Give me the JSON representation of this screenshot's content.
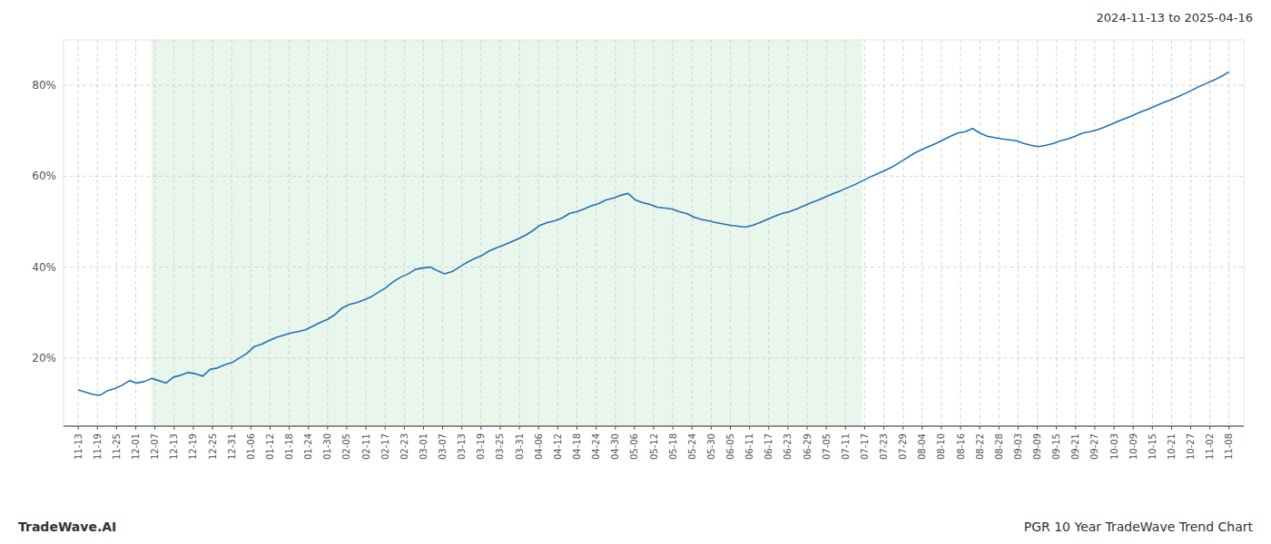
{
  "chart_data": {
    "type": "line",
    "title": "PGR 10 Year TradeWave Trend Chart",
    "subtitle": "2024-11-13 to 2025-04-16",
    "annotations": [
      "TradeWave.AI"
    ],
    "color": "#2271b3",
    "grid": true,
    "highlight": {
      "start": 10,
      "end": 107,
      "color": "#d4edda"
    },
    "xlim": [
      -2,
      159
    ],
    "xticks": [
      {
        "value": 0,
        "label": "11-13"
      },
      {
        "value": 2.6167,
        "label": "11-19"
      },
      {
        "value": 5.2333,
        "label": "11-25"
      },
      {
        "value": 7.85,
        "label": "12-01"
      },
      {
        "value": 10.4667,
        "label": "12-07"
      },
      {
        "value": 13.0833,
        "label": "12-13"
      },
      {
        "value": 15.7,
        "label": "12-19"
      },
      {
        "value": 18.3167,
        "label": "12-25"
      },
      {
        "value": 20.9333,
        "label": "12-31"
      },
      {
        "value": 23.55,
        "label": "01-06"
      },
      {
        "value": 26.1667,
        "label": "01-12"
      },
      {
        "value": 28.7833,
        "label": "01-18"
      },
      {
        "value": 31.4,
        "label": "01-24"
      },
      {
        "value": 34.0167,
        "label": "01-30"
      },
      {
        "value": 36.6333,
        "label": "02-05"
      },
      {
        "value": 39.25,
        "label": "02-11"
      },
      {
        "value": 41.8667,
        "label": "02-17"
      },
      {
        "value": 44.4833,
        "label": "02-23"
      },
      {
        "value": 47.1,
        "label": "03-01"
      },
      {
        "value": 49.7167,
        "label": "03-07"
      },
      {
        "value": 52.3333,
        "label": "03-13"
      },
      {
        "value": 54.95,
        "label": "03-19"
      },
      {
        "value": 57.5667,
        "label": "03-25"
      },
      {
        "value": 60.1833,
        "label": "03-31"
      },
      {
        "value": 62.8,
        "label": "04-06"
      },
      {
        "value": 65.4167,
        "label": "04-12"
      },
      {
        "value": 68.0333,
        "label": "04-18"
      },
      {
        "value": 70.65,
        "label": "04-24"
      },
      {
        "value": 73.2667,
        "label": "04-30"
      },
      {
        "value": 75.8833,
        "label": "05-06"
      },
      {
        "value": 78.5,
        "label": "05-12"
      },
      {
        "value": 81.1167,
        "label": "05-18"
      },
      {
        "value": 83.7333,
        "label": "05-24"
      },
      {
        "value": 86.35,
        "label": "05-30"
      },
      {
        "value": 88.9667,
        "label": "06-05"
      },
      {
        "value": 91.5833,
        "label": "06-11"
      },
      {
        "value": 94.2,
        "label": "06-17"
      },
      {
        "value": 96.8167,
        "label": "06-23"
      },
      {
        "value": 99.4333,
        "label": "06-29"
      },
      {
        "value": 102.05,
        "label": "07-05"
      },
      {
        "value": 104.6667,
        "label": "07-11"
      },
      {
        "value": 107.2833,
        "label": "07-17"
      },
      {
        "value": 109.9,
        "label": "07-23"
      },
      {
        "value": 112.5167,
        "label": "07-29"
      },
      {
        "value": 115.1333,
        "label": "08-04"
      },
      {
        "value": 117.75,
        "label": "08-10"
      },
      {
        "value": 120.3667,
        "label": "08-16"
      },
      {
        "value": 122.9833,
        "label": "08-22"
      },
      {
        "value": 125.6,
        "label": "08-28"
      },
      {
        "value": 128.2167,
        "label": "09-03"
      },
      {
        "value": 130.8333,
        "label": "09-09"
      },
      {
        "value": 133.45,
        "label": "09-15"
      },
      {
        "value": 136.0667,
        "label": "09-21"
      },
      {
        "value": 138.6833,
        "label": "09-27"
      },
      {
        "value": 141.3,
        "label": "10-03"
      },
      {
        "value": 143.9167,
        "label": "10-09"
      },
      {
        "value": 146.5333,
        "label": "10-15"
      },
      {
        "value": 149.15,
        "label": "10-21"
      },
      {
        "value": 151.7667,
        "label": "10-27"
      },
      {
        "value": 154.3833,
        "label": "11-02"
      },
      {
        "value": 157,
        "label": "11-08"
      }
    ],
    "ylim": [
      0.05,
      0.9
    ],
    "yticks": [
      {
        "value": 0.2,
        "label": "20%"
      },
      {
        "value": 0.4,
        "label": "40%"
      },
      {
        "value": 0.6,
        "label": "60%"
      },
      {
        "value": 0.8,
        "label": "80%"
      }
    ],
    "values": [
      0.13,
      0.125,
      0.12,
      0.118,
      0.128,
      0.133,
      0.14,
      0.15,
      0.145,
      0.148,
      0.155,
      0.15,
      0.145,
      0.158,
      0.162,
      0.168,
      0.165,
      0.16,
      0.175,
      0.178,
      0.185,
      0.19,
      0.2,
      0.21,
      0.225,
      0.23,
      0.238,
      0.245,
      0.25,
      0.255,
      0.258,
      0.262,
      0.27,
      0.278,
      0.285,
      0.295,
      0.31,
      0.318,
      0.322,
      0.328,
      0.335,
      0.345,
      0.355,
      0.368,
      0.378,
      0.385,
      0.395,
      0.398,
      0.4,
      0.392,
      0.385,
      0.39,
      0.4,
      0.41,
      0.418,
      0.425,
      0.435,
      0.442,
      0.448,
      0.455,
      0.462,
      0.47,
      0.48,
      0.492,
      0.498,
      0.502,
      0.508,
      0.518,
      0.522,
      0.528,
      0.535,
      0.54,
      0.548,
      0.552,
      0.558,
      0.562,
      0.548,
      0.542,
      0.538,
      0.532,
      0.53,
      0.528,
      0.522,
      0.518,
      0.51,
      0.505,
      0.502,
      0.498,
      0.495,
      0.492,
      0.49,
      0.488,
      0.492,
      0.498,
      0.505,
      0.512,
      0.518,
      0.522,
      0.528,
      0.535,
      0.542,
      0.548,
      0.555,
      0.562,
      0.568,
      0.575,
      0.582,
      0.59,
      0.598,
      0.605,
      0.612,
      0.62,
      0.63,
      0.64,
      0.65,
      0.658,
      0.665,
      0.672,
      0.68,
      0.688,
      0.695,
      0.698,
      0.705,
      0.695,
      0.688,
      0.685,
      0.682,
      0.68,
      0.678,
      0.672,
      0.668,
      0.665,
      0.668,
      0.672,
      0.678,
      0.682,
      0.688,
      0.695,
      0.698,
      0.702,
      0.708,
      0.715,
      0.722,
      0.728,
      0.735,
      0.742,
      0.748,
      0.755,
      0.762,
      0.768,
      0.775,
      0.782,
      0.79,
      0.798,
      0.805,
      0.812,
      0.82,
      0.83
    ]
  }
}
